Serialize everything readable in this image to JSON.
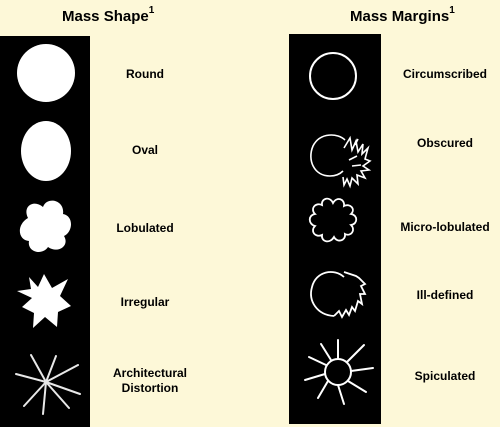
{
  "left": {
    "title": "Mass Shape",
    "sup": "1",
    "items": [
      {
        "label": "Round"
      },
      {
        "label": "Oval"
      },
      {
        "label": "Lobulated"
      },
      {
        "label": "Irregular"
      },
      {
        "label_line1": "Architectural",
        "label_line2": "Distortion"
      }
    ]
  },
  "right": {
    "title": "Mass Margins",
    "sup": "1",
    "items": [
      {
        "label": "Circumscribed"
      },
      {
        "label": "Obscured"
      },
      {
        "label": "Micro-lobulated"
      },
      {
        "label": "Ill-defined"
      },
      {
        "label": "Spiculated"
      }
    ]
  }
}
